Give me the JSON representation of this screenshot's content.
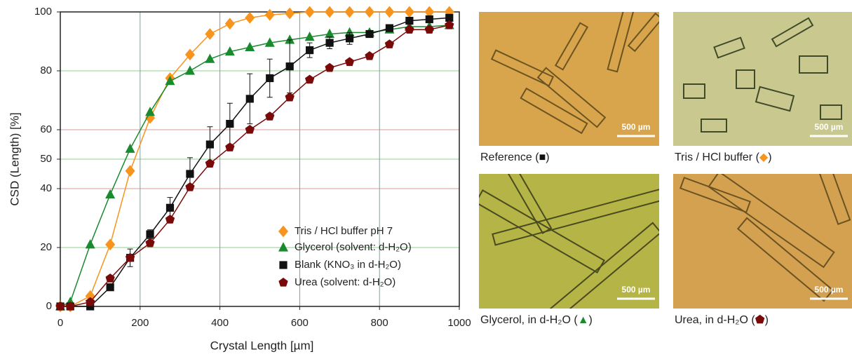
{
  "chart_data": {
    "type": "line",
    "xlabel": "Crystal Length [µm]",
    "ylabel": "CSD (Length) [%]",
    "xlim": [
      0,
      1000
    ],
    "xticks": [
      0,
      200,
      400,
      600,
      800,
      1000
    ],
    "ylim": [
      0,
      100
    ],
    "yticks": [
      0,
      20,
      40,
      50,
      60,
      80,
      100
    ],
    "grid": true,
    "x": [
      0,
      25,
      75,
      125,
      175,
      225,
      275,
      325,
      375,
      425,
      475,
      525,
      575,
      625,
      675,
      725,
      775,
      825,
      875,
      925,
      975
    ],
    "series": [
      {
        "name": "Tris / HCl buffer pH 7",
        "color": "#f7941d",
        "marker": "diamond",
        "values": [
          0,
          0,
          3.5,
          21,
          46,
          64,
          77.5,
          85.5,
          92.5,
          96,
          98,
          99,
          99.5,
          100,
          100,
          100,
          100,
          100,
          100,
          100,
          100
        ]
      },
      {
        "name": "Glycerol (solvent: d-H₂O)",
        "color": "#1a8a2e",
        "marker": "triangle",
        "values": [
          0,
          1.5,
          21,
          38,
          53.5,
          66,
          76.5,
          80,
          84,
          86.5,
          88,
          89.5,
          90.5,
          91.5,
          92.5,
          93,
          93,
          94,
          95,
          95,
          95.5
        ]
      },
      {
        "name": "Blank (KNO₃ in d-H₂O)",
        "color": "#111111",
        "marker": "square",
        "values": [
          0,
          0,
          0,
          6.5,
          16.5,
          24.5,
          33.5,
          45,
          55,
          62,
          70.5,
          77.5,
          81.5,
          87,
          89.5,
          91,
          92.5,
          94.5,
          97,
          97.5,
          98
        ],
        "errors": [
          0,
          0,
          0,
          0,
          3,
          1.5,
          3.5,
          5.5,
          6,
          7,
          8.5,
          6.5,
          9,
          2.5,
          2,
          2,
          0,
          0,
          0,
          0,
          0
        ]
      },
      {
        "name": "Urea (solvent: d-H₂O)",
        "color": "#7a0a0a",
        "marker": "pentagon",
        "values": [
          0,
          0,
          1.5,
          9.5,
          16.5,
          21.5,
          29.5,
          40.5,
          48.5,
          54,
          60,
          64.5,
          71,
          77,
          81,
          83,
          85,
          89,
          94,
          94,
          95.5
        ]
      }
    ]
  },
  "panels": [
    {
      "caption": [
        "Reference (",
        "■",
        ")"
      ],
      "scale_bar": "500 µm"
    },
    {
      "caption": [
        "Tris / HCl buffer (",
        "◆",
        ")"
      ],
      "scale_bar": "500 µm"
    },
    {
      "caption": [
        "Glycerol, in d-H₂O  (",
        "▲",
        ")"
      ],
      "scale_bar": "500 µm"
    },
    {
      "caption": [
        "Urea, in d-H₂O  (",
        "⬟",
        ")"
      ],
      "scale_bar": "500 µm"
    }
  ]
}
